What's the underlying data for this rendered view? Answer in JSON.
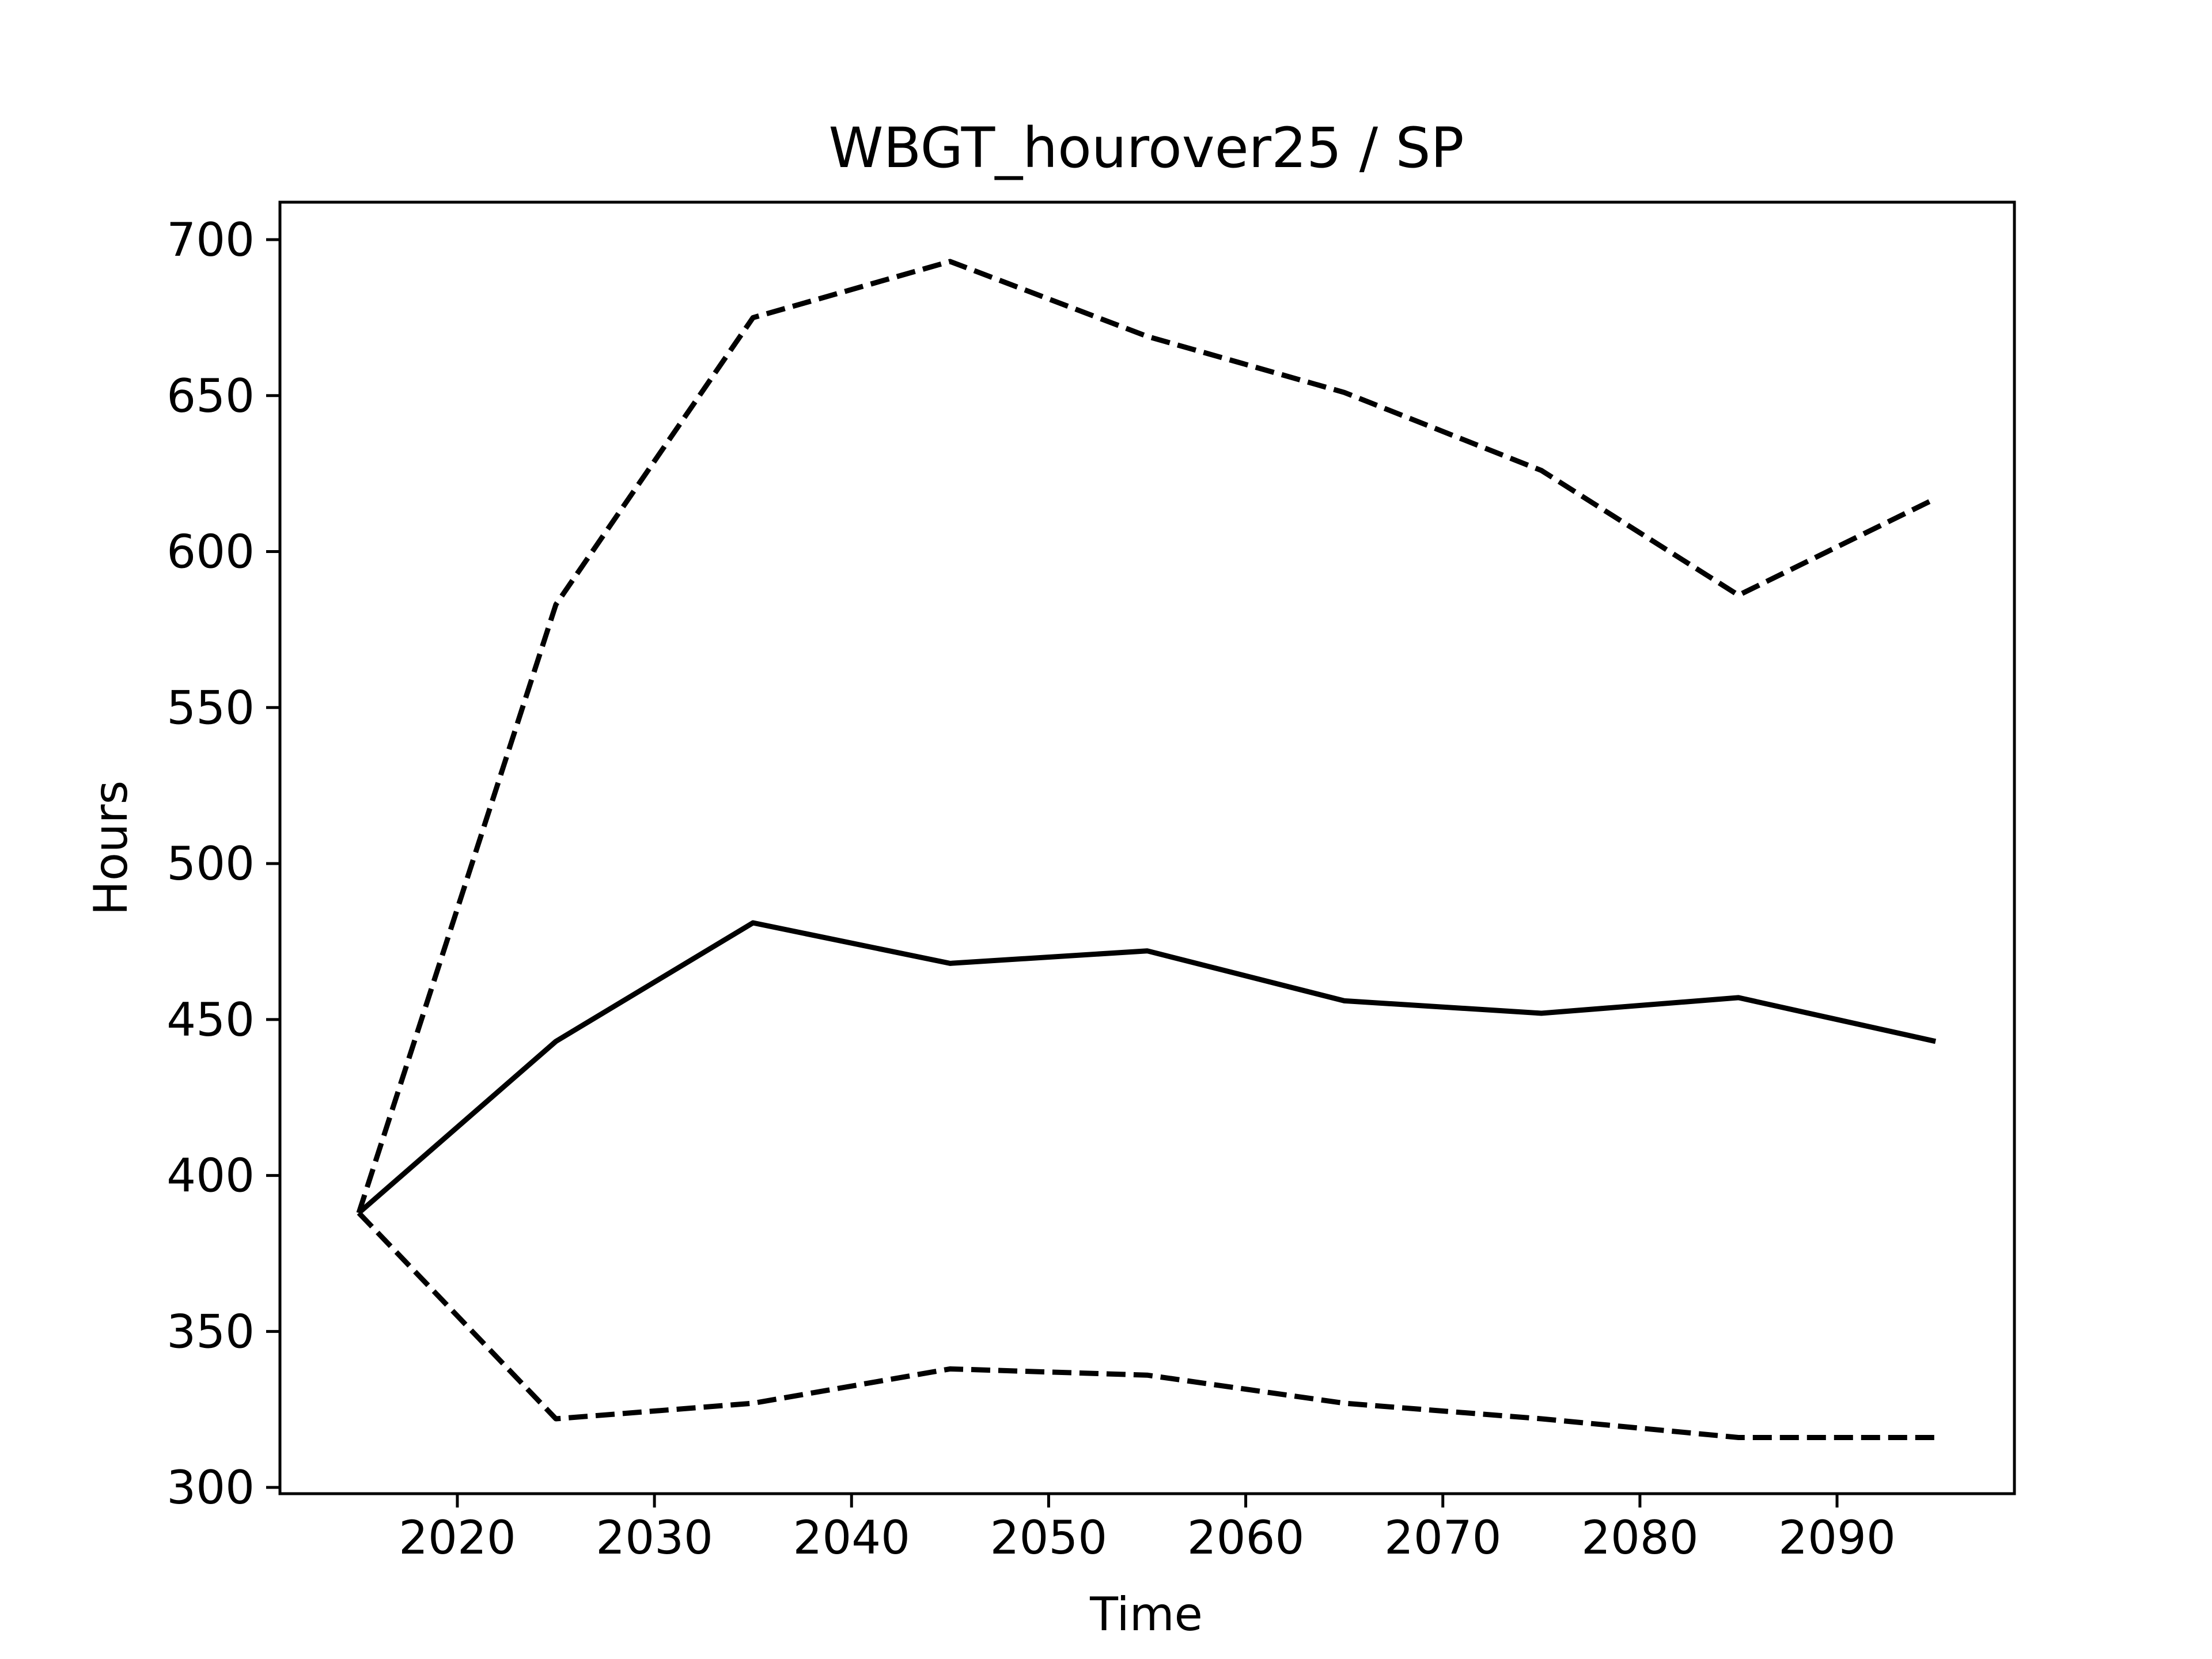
{
  "chart_data": {
    "type": "line",
    "title": "WBGT_hourover25 / SP",
    "xlabel": "Time",
    "ylabel": "Hours",
    "x": [
      2015,
      2025,
      2035,
      2045,
      2055,
      2065,
      2075,
      2085,
      2095
    ],
    "series": [
      {
        "style": "solid",
        "values": [
          388,
          443,
          481,
          468,
          472,
          456,
          452,
          457,
          443
        ]
      },
      {
        "style": "dashed",
        "values": [
          388,
          583,
          675,
          693,
          669,
          651,
          626,
          586,
          617
        ]
      },
      {
        "style": "dashed",
        "values": [
          388,
          322,
          327,
          338,
          336,
          327,
          322,
          316,
          316
        ]
      }
    ],
    "xlim": [
      2011,
      2099
    ],
    "ylim": [
      298,
      712
    ],
    "xticks": [
      2020,
      2030,
      2040,
      2050,
      2060,
      2070,
      2080,
      2090
    ],
    "yticks": [
      300,
      350,
      400,
      450,
      500,
      550,
      600,
      650,
      700
    ],
    "grid": false,
    "line_color": "#000000"
  }
}
